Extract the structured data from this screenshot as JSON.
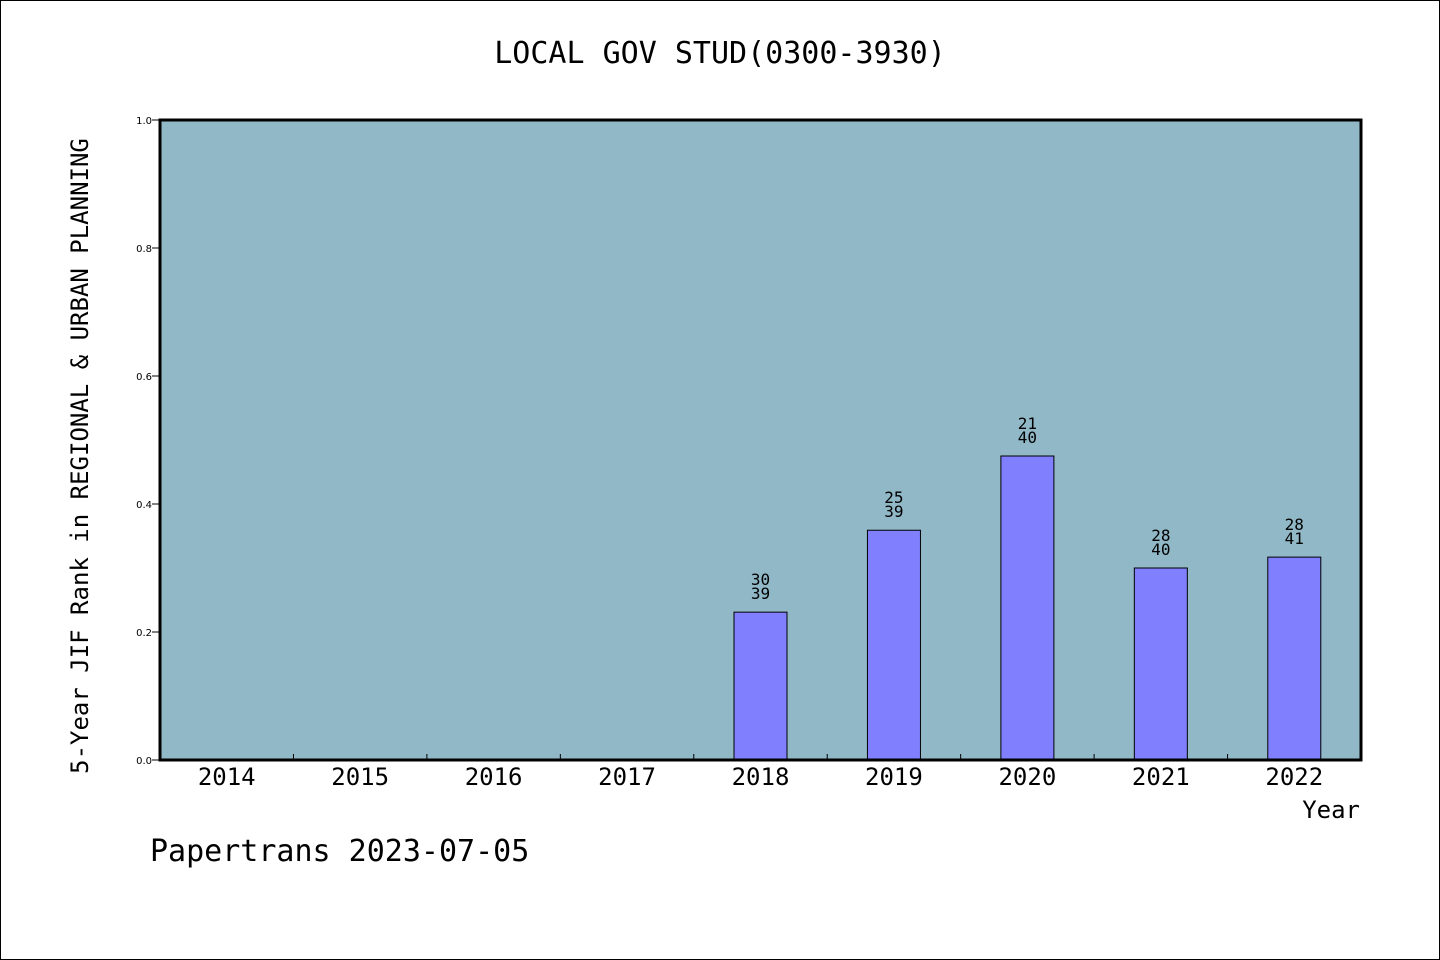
{
  "chart_data": {
    "type": "bar",
    "title": "LOCAL GOV STUD(0300-3930)",
    "ylabel": "5-Year JIF Rank in REGIONAL & URBAN PLANNING",
    "xlabel": "Year",
    "categories": [
      "2014",
      "2015",
      "2016",
      "2017",
      "2018",
      "2019",
      "2020",
      "2021",
      "2022"
    ],
    "values": [
      null,
      null,
      null,
      null,
      0.231,
      0.359,
      0.475,
      0.3,
      0.317
    ],
    "bar_labels": [
      null,
      null,
      null,
      null,
      {
        "rank": "30",
        "total": "39"
      },
      {
        "rank": "25",
        "total": "39"
      },
      {
        "rank": "21",
        "total": "40"
      },
      {
        "rank": "28",
        "total": "40"
      },
      {
        "rank": "28",
        "total": "41"
      }
    ],
    "ylim": [
      0,
      1.0
    ],
    "yticks": [
      "0.0",
      "0.2",
      "0.4",
      "0.6",
      "0.8",
      "1.0"
    ],
    "grid": false,
    "colors": {
      "plot_background": "#90b8c6",
      "bar_fill": "#8080ff",
      "bar_stroke": "#000000"
    }
  },
  "footer": "Papertrans 2023-07-05"
}
